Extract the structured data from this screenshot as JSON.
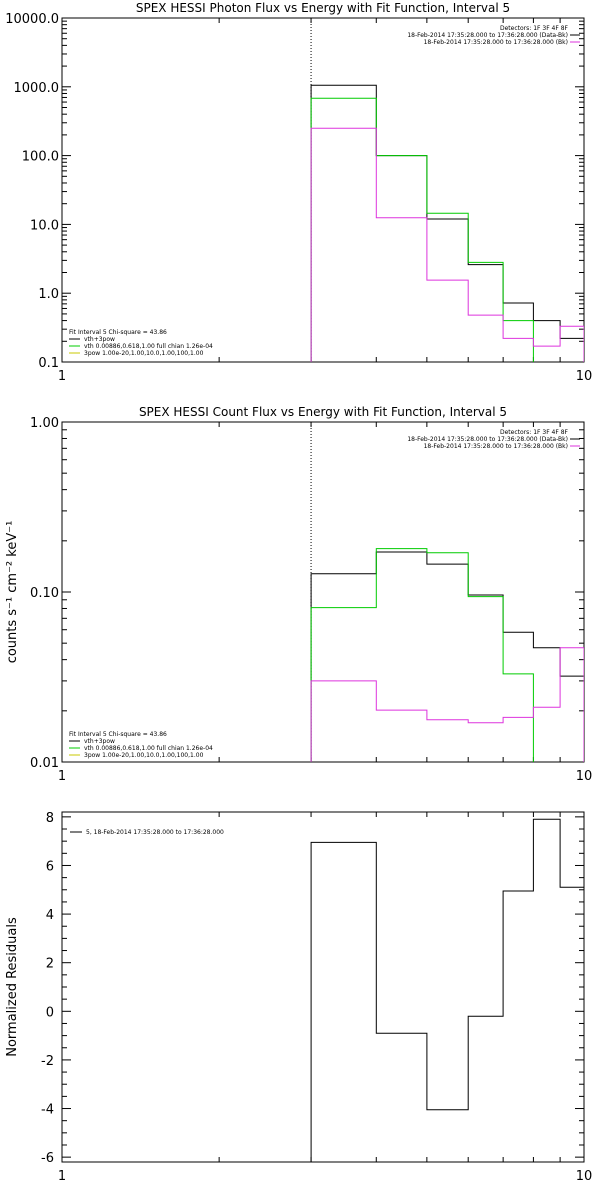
{
  "chart_data": [
    {
      "type": "line",
      "title": "SPEX HESSI Photon Flux vs Energy with Fit Function, Interval 5",
      "ylabel": "",
      "xlabel": "",
      "x_scale": "log",
      "y_scale": "log",
      "xlim": [
        1,
        10
      ],
      "ylim": [
        0.1,
        10000
      ],
      "xticks": [
        "1",
        "10"
      ],
      "yticks": [
        "0.1",
        "1.0",
        "10.0",
        "100.0",
        "1000.0",
        "10000.0"
      ],
      "vline_x": 3,
      "legend_top": [
        "Detectors: 1F 3F 4F 8F",
        "18-Feb-2014 17:35:28.000 to 17:36:28.000 (Data-Bk)",
        "18-Feb-2014 17:35:28.000 to 17:36:28.000 (Bk)"
      ],
      "legend_bottom": [
        "Fit Interval 5   Chi-square = 43.86",
        "vth+3pow",
        "vth 0.00886,0.618,1.00   full chian 1.26e-04",
        "3pow 1.00e-20,1.00,10.0,1.00,100,1.00"
      ],
      "legend_colors": [
        "#000000",
        "#000000",
        "#00cc00",
        "#c8c800"
      ],
      "series": [
        {
          "color": "#000000",
          "edges": [
            3,
            4,
            5,
            6,
            7,
            8,
            9,
            10
          ],
          "values": [
            1050,
            100,
            12,
            2.6,
            0.72,
            0.4,
            0.22
          ]
        },
        {
          "color": "#00cc00",
          "edges": [
            3,
            4,
            5,
            6,
            7,
            8
          ],
          "values": [
            680,
            100,
            14.5,
            2.8,
            0.4
          ]
        },
        {
          "color": "#dd33dd",
          "edges": [
            3,
            4,
            5,
            6,
            7,
            8,
            9,
            10
          ],
          "values": [
            250,
            12.5,
            1.55,
            0.48,
            0.22,
            0.17,
            0.33
          ]
        }
      ]
    },
    {
      "type": "line",
      "title": "SPEX HESSI Count Flux vs Energy with Fit Function, Interval 5",
      "ylabel": "counts s⁻¹ cm⁻² keV⁻¹",
      "xlabel": "",
      "x_scale": "log",
      "y_scale": "log",
      "xlim": [
        1,
        10
      ],
      "ylim": [
        0.01,
        1.0
      ],
      "xticks": [
        "1",
        "10"
      ],
      "yticks": [
        "0.01",
        "0.10",
        "1.00"
      ],
      "vline_x": 3,
      "legend_top": [
        "Detectors: 1F 3F 4F 8F",
        "18-Feb-2014 17:35:28.000 to 17:36:28.000 (Data-Bk)",
        "18-Feb-2014 17:35:28.000 to 17:36:28.000 (Bk)"
      ],
      "legend_bottom": [
        "Fit Interval 5   Chi-square = 43.86",
        "vth+3pow",
        "vth 0.00886,0.618,1.00   full chian 1.26e-04",
        "3pow 1.00e-20,1.00,10.0,1.00,100,1.00"
      ],
      "legend_colors": [
        "#000000",
        "#000000",
        "#00cc00",
        "#c8c800"
      ],
      "series": [
        {
          "color": "#000000",
          "edges": [
            3,
            4,
            5,
            6,
            7,
            8,
            9,
            10
          ],
          "values": [
            0.128,
            0.172,
            0.146,
            0.096,
            0.058,
            0.047,
            0.032
          ]
        },
        {
          "color": "#00cc00",
          "edges": [
            3,
            4,
            5,
            6,
            7,
            8
          ],
          "values": [
            0.081,
            0.18,
            0.17,
            0.094,
            0.033
          ]
        },
        {
          "color": "#dd33dd",
          "edges": [
            3,
            4,
            5,
            6,
            7,
            8,
            9,
            10
          ],
          "values": [
            0.03,
            0.0202,
            0.0177,
            0.017,
            0.0183,
            0.021,
            0.047
          ]
        }
      ]
    },
    {
      "type": "line",
      "title": "",
      "ylabel": "Normalized Residuals",
      "xlabel": "",
      "x_scale": "log",
      "y_scale": "linear",
      "xlim": [
        1,
        10
      ],
      "ylim": [
        -6.2,
        8.2
      ],
      "xticks": [
        "1",
        "10"
      ],
      "yticks": [
        "-6",
        "-4",
        "-2",
        "0",
        "2",
        "4",
        "6",
        "8"
      ],
      "legend_top": [
        "5, 18-Feb-2014 17:35:28.000 to 17:36:28.000"
      ],
      "series": [
        {
          "color": "#000000",
          "edges": [
            3,
            4,
            5,
            6,
            7,
            8,
            9,
            10
          ],
          "values": [
            6.95,
            -0.9,
            -4.05,
            -0.2,
            4.95,
            7.9,
            5.1
          ]
        }
      ]
    }
  ]
}
